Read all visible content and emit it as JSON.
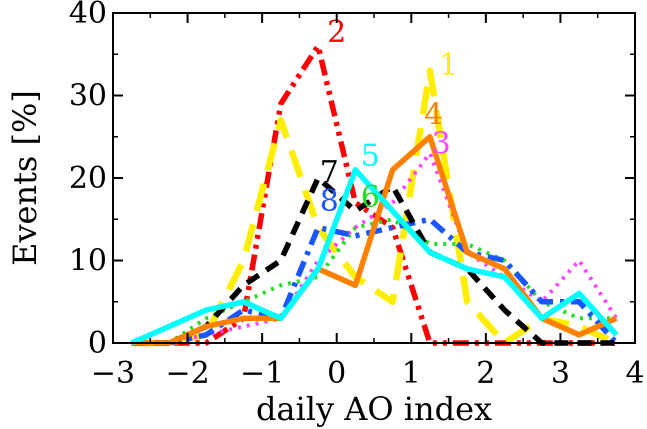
{
  "chart_data": {
    "type": "line",
    "xlabel": "daily AO index",
    "ylabel": "Events [%]",
    "xlim": [
      -3,
      4
    ],
    "ylim": [
      0,
      40
    ],
    "xticks": [
      -3,
      -2,
      -1,
      0,
      1,
      2,
      3,
      4
    ],
    "xtick_labels": [
      "−3",
      "−2",
      "−1",
      "0",
      "1",
      "2",
      "3",
      "4"
    ],
    "yticks": [
      0,
      10,
      20,
      30,
      40
    ],
    "ytick_labels": [
      "0",
      "10",
      "20",
      "30",
      "40"
    ],
    "grid": false,
    "legend": "none",
    "series": [
      {
        "name": "1",
        "color": "#ffee00",
        "dash": "long-dash",
        "x": [
          -2.75,
          -2.25,
          -1.75,
          -1.25,
          -0.75,
          -0.25,
          0.25,
          0.75,
          1.25,
          1.75,
          2.25,
          2.75,
          3.25,
          3.75
        ],
        "y": [
          0,
          0,
          1,
          10,
          27,
          14,
          8,
          5,
          33,
          5,
          0,
          3,
          2,
          0
        ],
        "label": "1",
        "label_x": 1.5,
        "label_y": 32.5
      },
      {
        "name": "2",
        "color": "#ff0000",
        "dash": "dash-dot-dot",
        "x": [
          -2.75,
          -2.25,
          -1.75,
          -1.25,
          -0.75,
          -0.25,
          0.25,
          0.75,
          1.25,
          1.75,
          2.25,
          2.75,
          3.25,
          3.75
        ],
        "y": [
          0,
          0,
          0,
          3,
          29,
          36,
          17,
          14,
          0,
          0,
          0,
          0,
          0,
          0
        ],
        "label": "2",
        "label_x": 0.0,
        "label_y": 36.5
      },
      {
        "name": "3",
        "color": "#ff44ff",
        "dash": "dot",
        "x": [
          -2.75,
          -2.25,
          -1.75,
          -1.25,
          -0.75,
          -0.25,
          0.25,
          0.75,
          1.25,
          1.75,
          2.25,
          2.75,
          3.25,
          3.75
        ],
        "y": [
          0,
          0,
          1,
          2,
          3,
          10,
          14,
          17,
          23,
          11,
          8,
          5,
          10,
          3
        ],
        "label": "3",
        "label_x": 1.4,
        "label_y": 23
      },
      {
        "name": "4",
        "color": "#ff8000",
        "dash": "solid",
        "x": [
          -2.75,
          -2.25,
          -1.75,
          -1.25,
          -0.75,
          -0.25,
          0.25,
          0.75,
          1.25,
          1.75,
          2.25,
          2.75,
          3.25,
          3.75
        ],
        "y": [
          0,
          0,
          2,
          3,
          3,
          9,
          7,
          21,
          25,
          11,
          9,
          3,
          1,
          3
        ],
        "label": "4",
        "label_x": 1.3,
        "label_y": 26.5
      },
      {
        "name": "5",
        "color": "#00ffff",
        "dash": "solid",
        "x": [
          -2.75,
          -2.25,
          -1.75,
          -1.25,
          -0.75,
          -0.25,
          0.25,
          0.75,
          1.25,
          1.75,
          2.25,
          2.75,
          3.25,
          3.75
        ],
        "y": [
          0,
          2,
          4,
          5,
          3,
          9,
          21,
          16,
          11,
          9,
          8,
          3,
          6,
          1
        ],
        "label": "5",
        "label_x": 0.45,
        "label_y": 21.5
      },
      {
        "name": "6",
        "color": "#22dd22",
        "dash": "dot",
        "x": [
          -2.75,
          -2.25,
          -1.75,
          -1.25,
          -0.75,
          -0.25,
          0.25,
          0.75,
          1.25,
          1.75,
          2.25,
          2.75,
          3.25,
          3.75
        ],
        "y": [
          0,
          0,
          3,
          5,
          7,
          8,
          14,
          15,
          12,
          12,
          10,
          5,
          3,
          3
        ],
        "label": "6",
        "label_x": 0.45,
        "label_y": 16.5
      },
      {
        "name": "7",
        "color": "#000000",
        "dash": "dash",
        "x": [
          -2.75,
          -2.25,
          -1.75,
          -1.25,
          -0.75,
          -0.25,
          0.25,
          0.75,
          1.25,
          1.75,
          2.25,
          2.75,
          3.25,
          3.75
        ],
        "y": [
          0,
          0,
          2,
          7,
          10,
          20,
          16,
          19,
          11,
          9,
          4,
          0,
          0,
          0
        ],
        "label": "7",
        "label_x": -0.1,
        "label_y": 19.5
      },
      {
        "name": "8",
        "color": "#1a56ff",
        "dash": "dash-dot",
        "x": [
          -2.75,
          -2.25,
          -1.75,
          -1.25,
          -0.75,
          -0.25,
          0.25,
          0.75,
          1.25,
          1.75,
          2.25,
          2.75,
          3.25,
          3.75
        ],
        "y": [
          0,
          0,
          1,
          4,
          3,
          14,
          13,
          14,
          15,
          11,
          10,
          5,
          5,
          0
        ],
        "label": "8",
        "label_x": -0.1,
        "label_y": 16
      }
    ]
  }
}
